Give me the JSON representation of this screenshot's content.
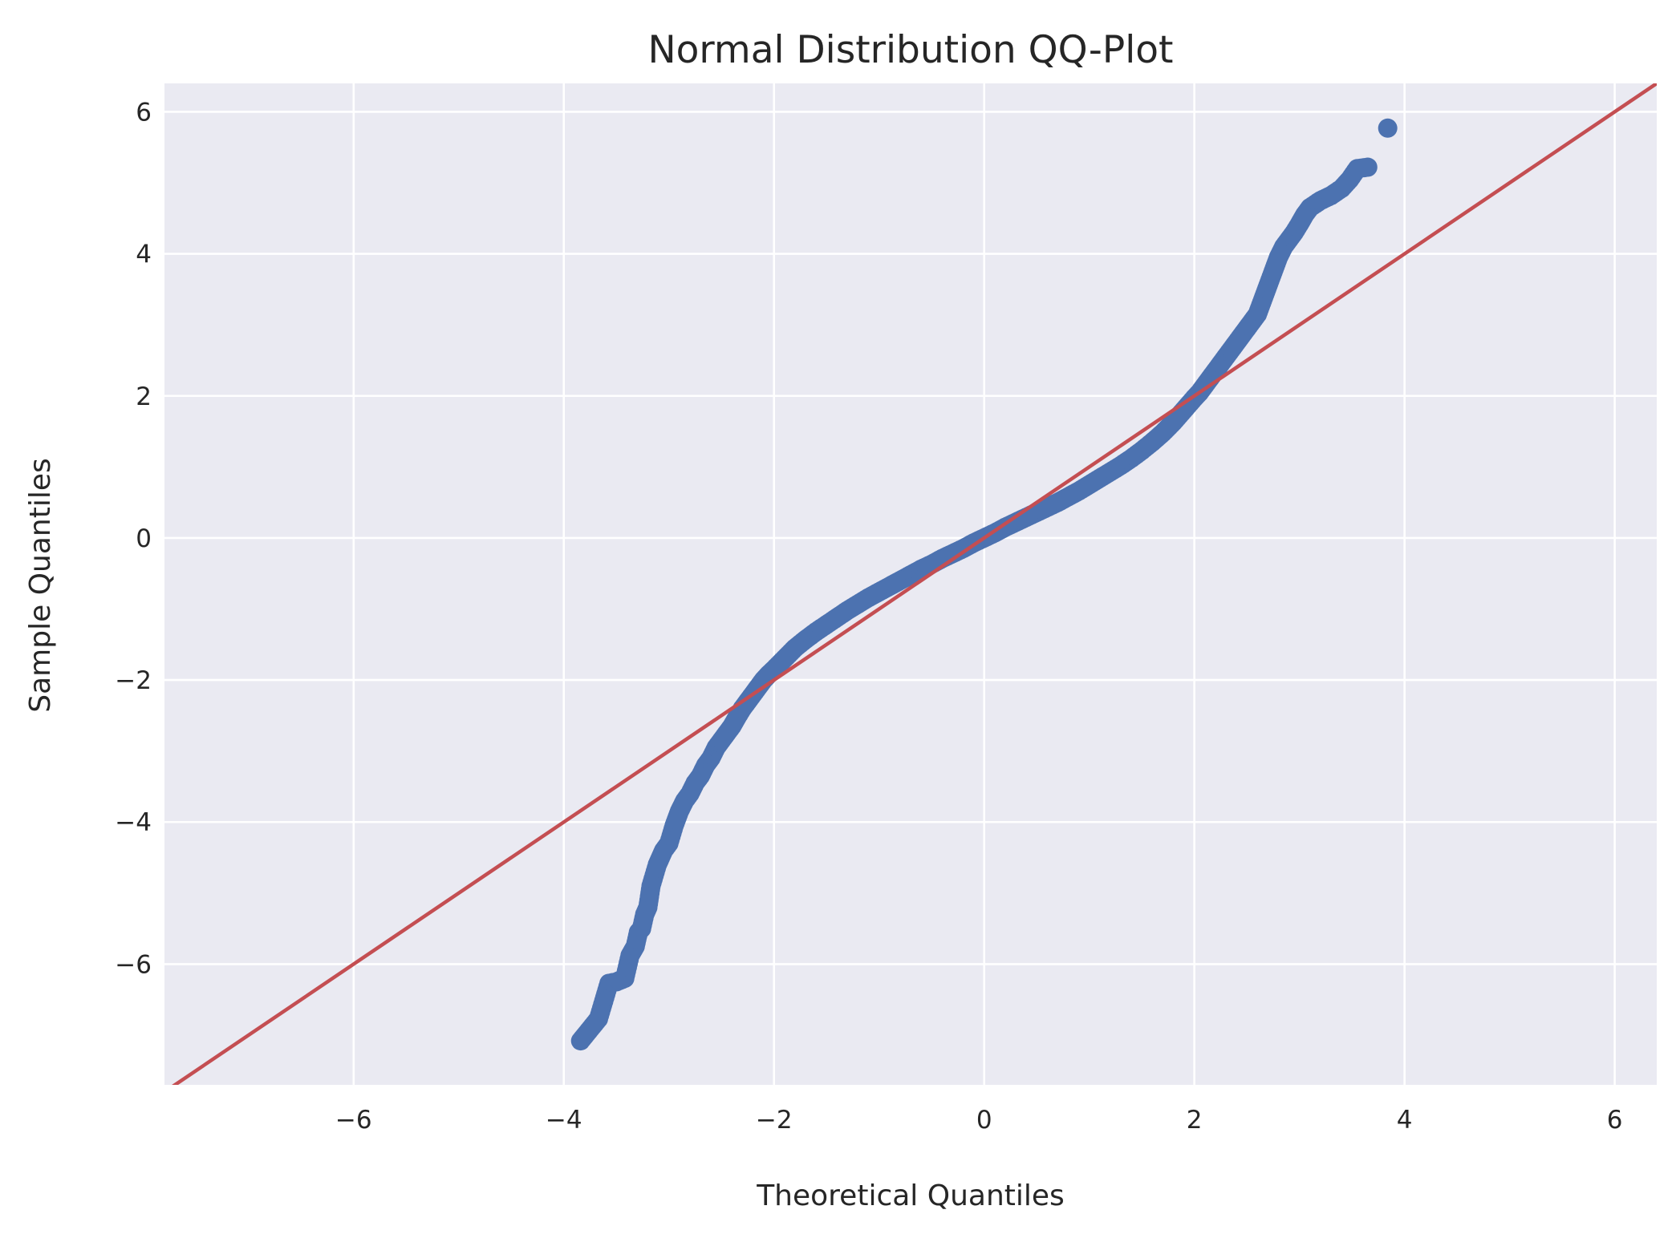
{
  "chart_data": {
    "type": "scatter",
    "title": "Normal Distribution QQ-Plot",
    "xlabel": "Theoretical Quantiles",
    "ylabel": "Sample Quantiles",
    "xlim": [
      -7.8,
      6.4
    ],
    "ylim": [
      -7.7,
      6.4
    ],
    "xticks": [
      -6,
      -4,
      -2,
      0,
      2,
      4,
      6
    ],
    "yticks": [
      -6,
      -4,
      -2,
      0,
      2,
      4,
      6
    ],
    "xtick_labels": [
      "−6",
      "−4",
      "−2",
      "0",
      "2",
      "4",
      "6"
    ],
    "ytick_labels": [
      "−6",
      "−4",
      "−2",
      "0",
      "2",
      "4",
      "6"
    ],
    "grid": true,
    "series": [
      {
        "kind": "points",
        "color": "#4c72b0",
        "x": [
          -3.84,
          -3.67,
          -3.57,
          -3.5,
          -3.42,
          -3.37,
          -3.32,
          -3.29,
          -3.26,
          -3.23,
          -3.2,
          -3.17,
          -3.14,
          -3.11,
          -3.08,
          -3.05,
          -3.0,
          -2.95,
          -2.9,
          -2.85,
          -2.8,
          -2.75,
          -2.7,
          -2.65,
          -2.6,
          -2.55,
          -2.5,
          -2.45,
          -2.4,
          -2.35,
          -2.3,
          -2.25,
          -2.2,
          -2.15,
          -2.1,
          -2.05,
          -2.0,
          -1.9,
          -1.8,
          -1.7,
          -1.6,
          -1.5,
          -1.4,
          -1.3,
          -1.2,
          -1.1,
          -1.0,
          -0.9,
          -0.8,
          -0.7,
          -0.6,
          -0.5,
          -0.4,
          -0.3,
          -0.2,
          -0.1,
          0.0,
          0.1,
          0.2,
          0.3,
          0.4,
          0.5,
          0.6,
          0.7,
          0.8,
          0.9,
          1.0,
          1.1,
          1.2,
          1.3,
          1.4,
          1.5,
          1.6,
          1.7,
          1.8,
          1.9,
          2.0,
          2.05,
          2.1,
          2.15,
          2.2,
          2.25,
          2.3,
          2.35,
          2.4,
          2.45,
          2.5,
          2.55,
          2.6,
          2.65,
          2.7,
          2.75,
          2.8,
          2.85,
          2.9,
          2.95,
          3.0,
          3.05,
          3.1,
          3.15,
          3.2,
          3.3,
          3.4,
          3.48,
          3.55,
          3.65,
          3.84
        ],
        "y": [
          -7.08,
          -6.77,
          -6.27,
          -6.25,
          -6.2,
          -5.88,
          -5.75,
          -5.55,
          -5.5,
          -5.3,
          -5.2,
          -4.9,
          -4.75,
          -4.6,
          -4.5,
          -4.4,
          -4.3,
          -4.05,
          -3.85,
          -3.7,
          -3.6,
          -3.45,
          -3.35,
          -3.2,
          -3.1,
          -2.95,
          -2.85,
          -2.75,
          -2.65,
          -2.52,
          -2.4,
          -2.3,
          -2.2,
          -2.1,
          -2.0,
          -1.92,
          -1.85,
          -1.7,
          -1.55,
          -1.43,
          -1.32,
          -1.22,
          -1.12,
          -1.02,
          -0.93,
          -0.84,
          -0.76,
          -0.68,
          -0.6,
          -0.52,
          -0.44,
          -0.37,
          -0.29,
          -0.22,
          -0.15,
          -0.07,
          0.0,
          0.07,
          0.15,
          0.22,
          0.29,
          0.36,
          0.43,
          0.5,
          0.58,
          0.66,
          0.75,
          0.84,
          0.93,
          1.02,
          1.12,
          1.23,
          1.35,
          1.48,
          1.63,
          1.8,
          1.97,
          2.05,
          2.15,
          2.25,
          2.35,
          2.45,
          2.55,
          2.65,
          2.75,
          2.85,
          2.95,
          3.05,
          3.15,
          3.35,
          3.55,
          3.75,
          3.95,
          4.1,
          4.2,
          4.3,
          4.42,
          4.55,
          4.65,
          4.7,
          4.75,
          4.82,
          4.92,
          5.05,
          5.2,
          5.22,
          5.77
        ]
      },
      {
        "kind": "reference-line",
        "color": "#c44e52",
        "x": [
          -7.8,
          6.4
        ],
        "y": [
          -7.8,
          6.4
        ]
      }
    ]
  }
}
